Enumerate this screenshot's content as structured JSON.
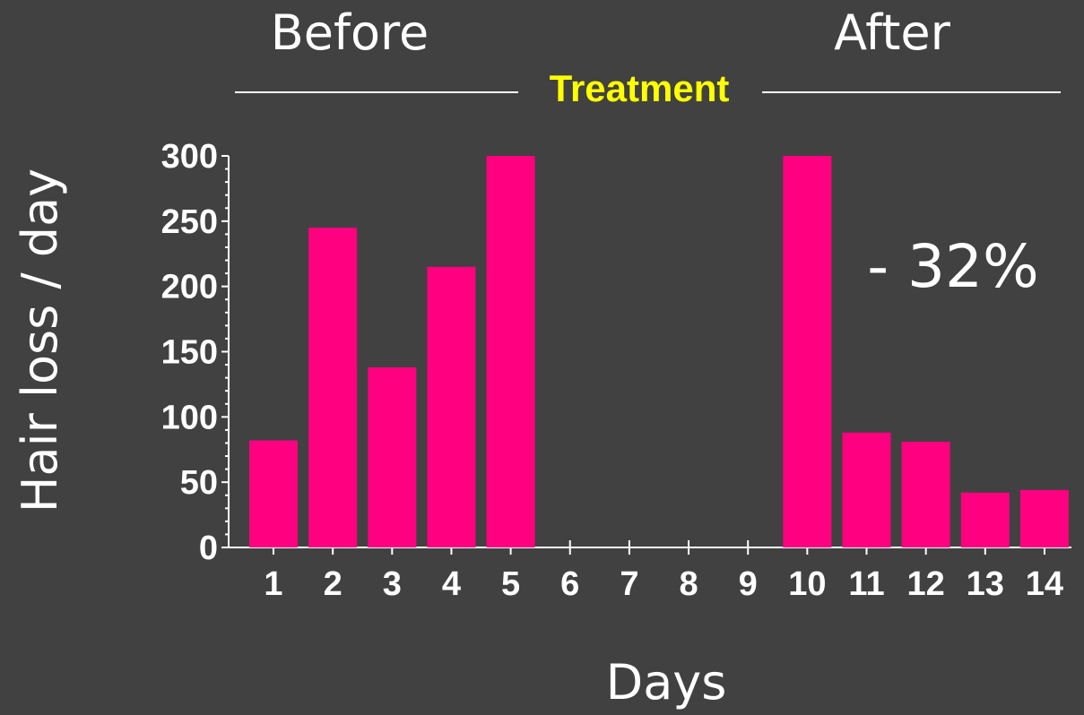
{
  "header": {
    "before_label": "Before",
    "after_label": "After",
    "treatment_label": "Treatment"
  },
  "annotation": "- 32%",
  "colors": {
    "background": "#414141",
    "bar": "#ff0080",
    "treatment": "#ffff00",
    "text": "#ffffff"
  },
  "chart_data": {
    "type": "bar",
    "categories": [
      "1",
      "2",
      "3",
      "4",
      "5",
      "6",
      "7",
      "8",
      "9",
      "10",
      "11",
      "12",
      "13",
      "14"
    ],
    "values": [
      82,
      245,
      138,
      215,
      300,
      null,
      null,
      null,
      null,
      300,
      88,
      81,
      42,
      44
    ],
    "xlabel": "Days",
    "ylabel": "Hair loss / day",
    "ylim": [
      0,
      300
    ],
    "yticks": [
      "0",
      "50",
      "100",
      "150",
      "200",
      "250",
      "300"
    ],
    "grid": false
  }
}
